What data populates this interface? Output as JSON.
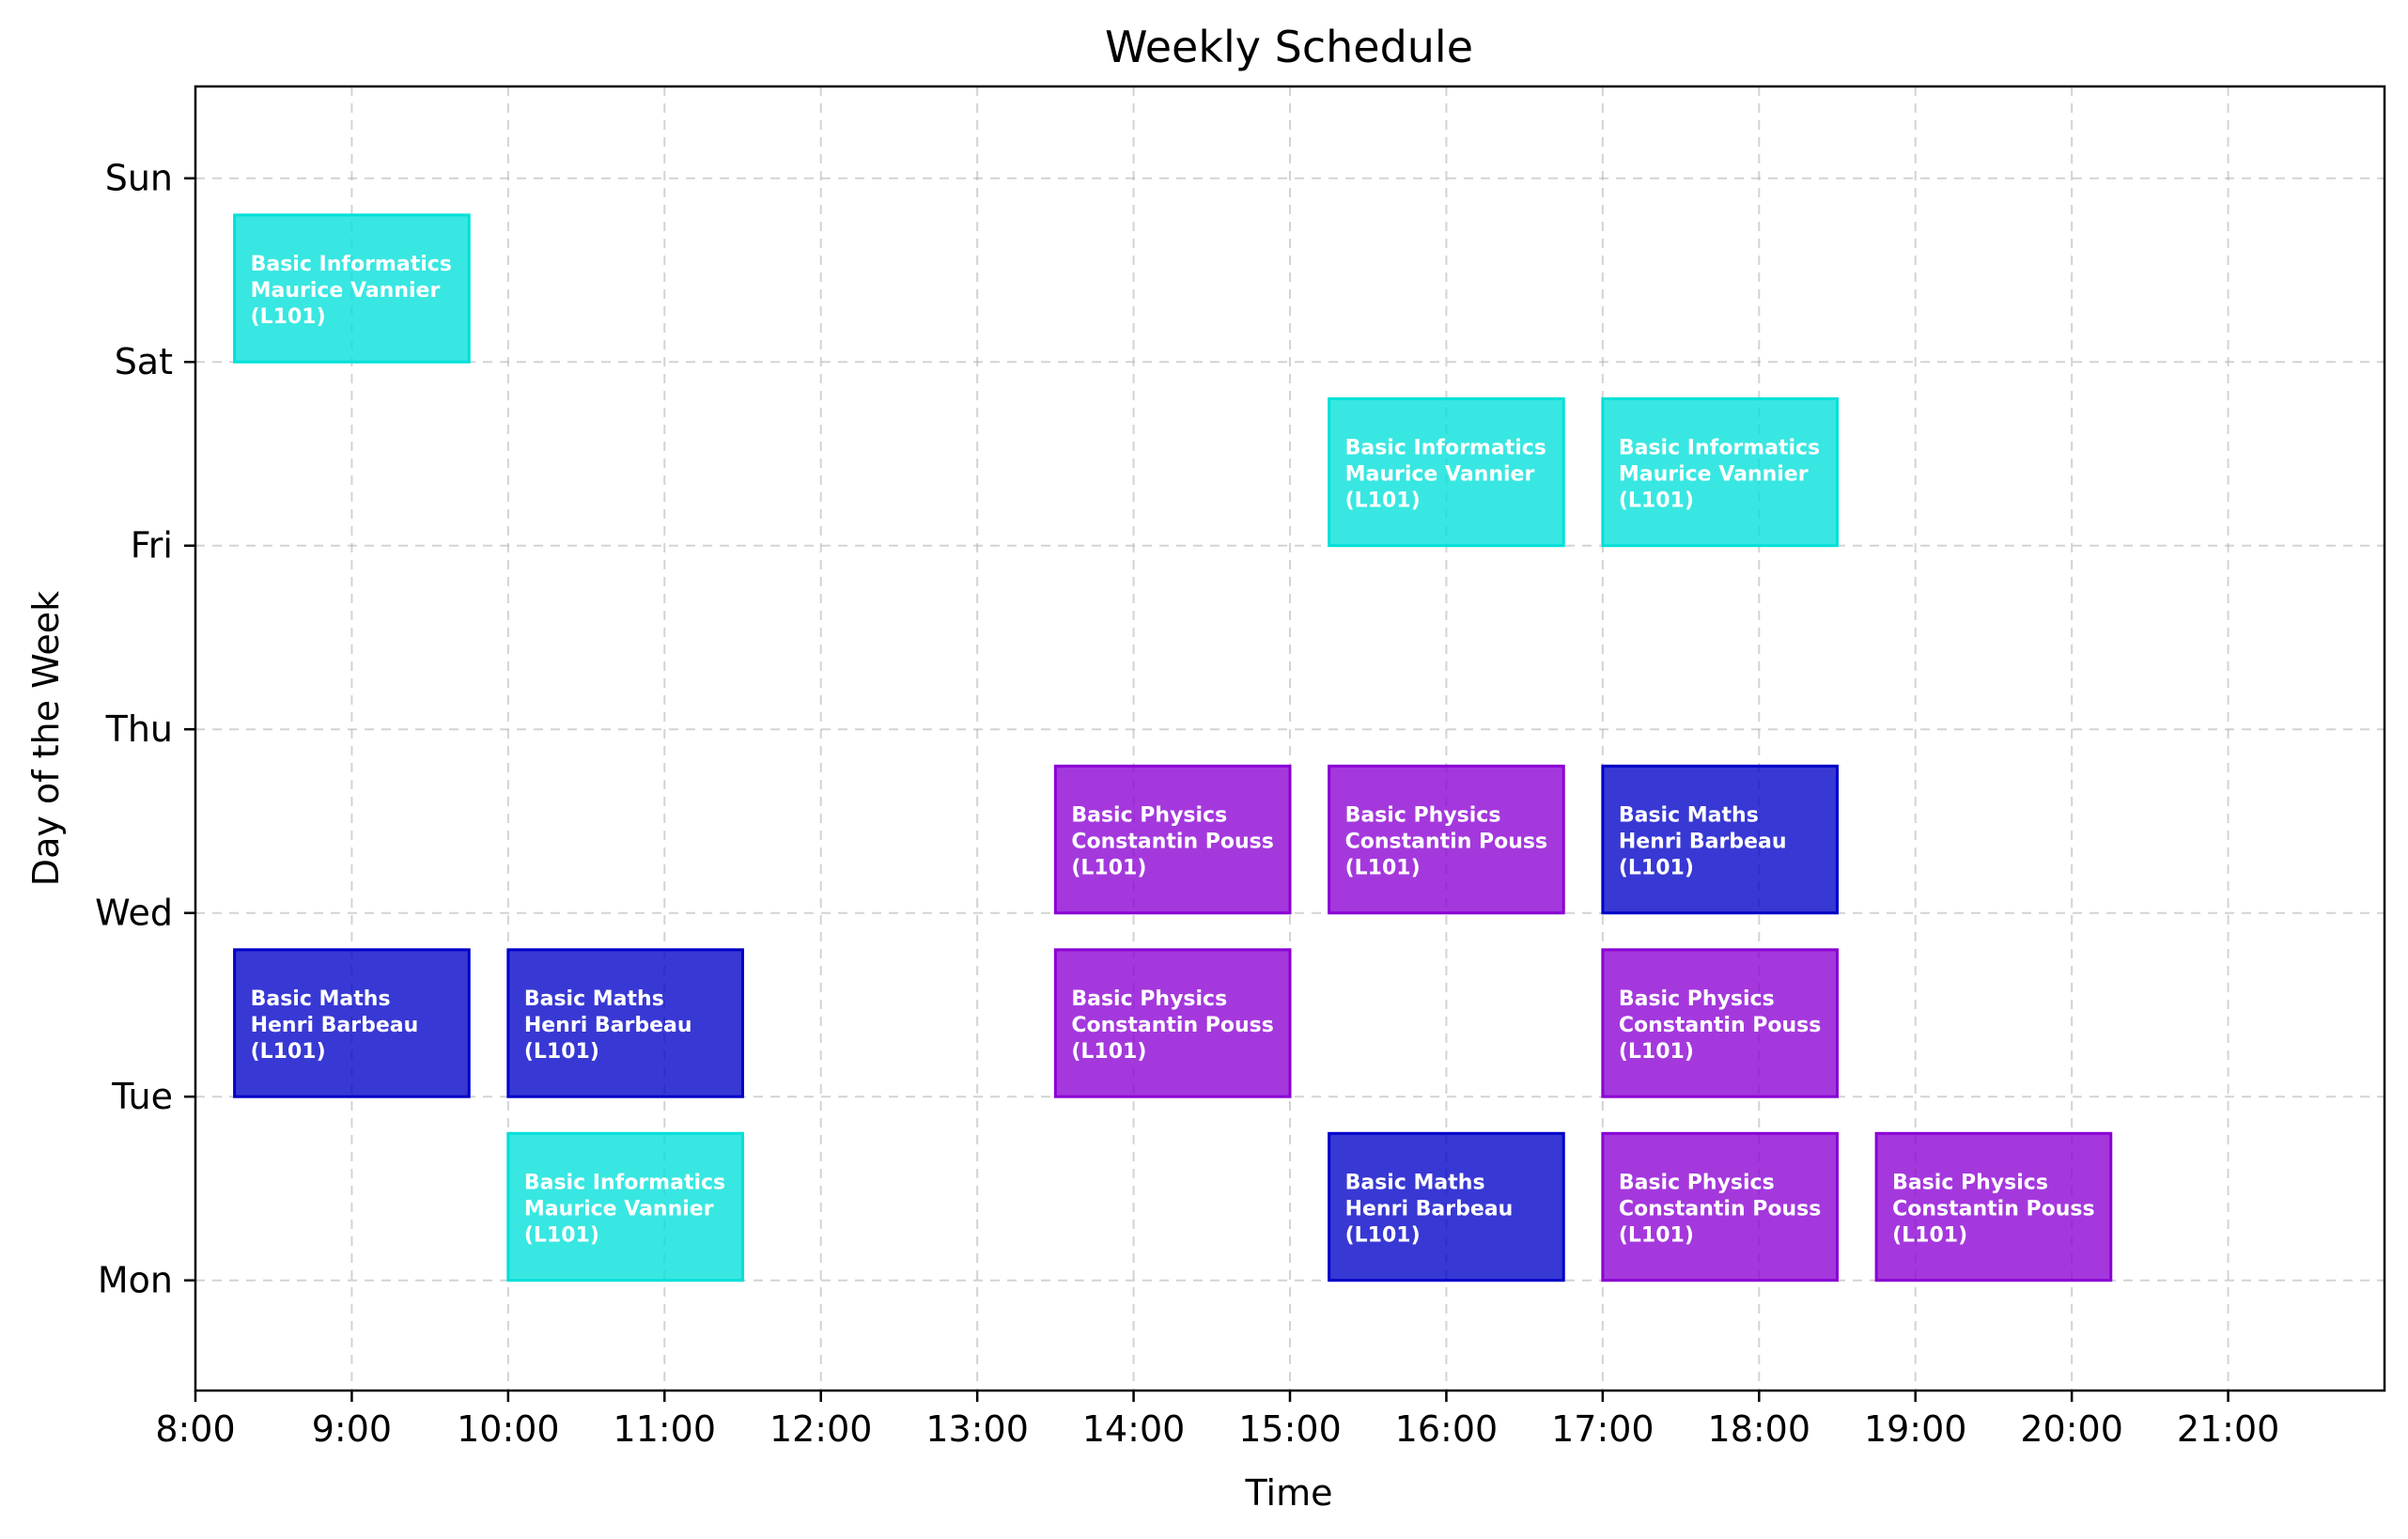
{
  "chart_data": {
    "type": "bar",
    "orientation": "horizontal-timeline",
    "title": "Weekly Schedule",
    "xlabel": "Time",
    "ylabel": "Day of the Week",
    "xlim": [
      8,
      22
    ],
    "ylim": [
      -0.6,
      6.5
    ],
    "x_ticks": [
      {
        "value": 8,
        "label": "8:00"
      },
      {
        "value": 9,
        "label": "9:00"
      },
      {
        "value": 10,
        "label": "10:00"
      },
      {
        "value": 11,
        "label": "11:00"
      },
      {
        "value": 12,
        "label": "12:00"
      },
      {
        "value": 13,
        "label": "13:00"
      },
      {
        "value": 14,
        "label": "14:00"
      },
      {
        "value": 15,
        "label": "15:00"
      },
      {
        "value": 16,
        "label": "16:00"
      },
      {
        "value": 17,
        "label": "17:00"
      },
      {
        "value": 18,
        "label": "18:00"
      },
      {
        "value": 19,
        "label": "19:00"
      },
      {
        "value": 20,
        "label": "20:00"
      },
      {
        "value": 21,
        "label": "21:00"
      }
    ],
    "y_ticks": [
      {
        "value": 0,
        "label": "Mon"
      },
      {
        "value": 1,
        "label": "Tue"
      },
      {
        "value": 2,
        "label": "Wed"
      },
      {
        "value": 3,
        "label": "Thu"
      },
      {
        "value": 4,
        "label": "Fri"
      },
      {
        "value": 5,
        "label": "Sat"
      },
      {
        "value": 6,
        "label": "Sun"
      }
    ],
    "grid": true,
    "legend": "none",
    "colors": {
      "Basic Informatics": "#00e0d8",
      "Basic Maths": "#0000c8",
      "Basic Physics": "#8a00d4"
    },
    "sessions": [
      {
        "day": 0,
        "start": 10.0,
        "end": 11.5,
        "course": "Basic Informatics",
        "teacher": "Maurice Vannier",
        "room": "(L101)"
      },
      {
        "day": 0,
        "start": 15.25,
        "end": 16.75,
        "course": "Basic Maths",
        "teacher": "Henri Barbeau",
        "room": "(L101)"
      },
      {
        "day": 0,
        "start": 17.0,
        "end": 18.5,
        "course": "Basic Physics",
        "teacher": "Constantin Pouss",
        "room": "(L101)"
      },
      {
        "day": 0,
        "start": 18.75,
        "end": 20.25,
        "course": "Basic Physics",
        "teacher": "Constantin Pouss",
        "room": "(L101)"
      },
      {
        "day": 1,
        "start": 8.25,
        "end": 9.75,
        "course": "Basic Maths",
        "teacher": "Henri Barbeau",
        "room": "(L101)"
      },
      {
        "day": 1,
        "start": 10.0,
        "end": 11.5,
        "course": "Basic Maths",
        "teacher": "Henri Barbeau",
        "room": "(L101)"
      },
      {
        "day": 1,
        "start": 13.5,
        "end": 15.0,
        "course": "Basic Physics",
        "teacher": "Constantin Pouss",
        "room": "(L101)"
      },
      {
        "day": 1,
        "start": 17.0,
        "end": 18.5,
        "course": "Basic Physics",
        "teacher": "Constantin Pouss",
        "room": "(L101)"
      },
      {
        "day": 2,
        "start": 13.5,
        "end": 15.0,
        "course": "Basic Physics",
        "teacher": "Constantin Pouss",
        "room": "(L101)"
      },
      {
        "day": 2,
        "start": 15.25,
        "end": 16.75,
        "course": "Basic Physics",
        "teacher": "Constantin Pouss",
        "room": "(L101)"
      },
      {
        "day": 2,
        "start": 17.0,
        "end": 18.5,
        "course": "Basic Maths",
        "teacher": "Henri Barbeau",
        "room": "(L101)"
      },
      {
        "day": 4,
        "start": 15.25,
        "end": 16.75,
        "course": "Basic Informatics",
        "teacher": "Maurice Vannier",
        "room": "(L101)"
      },
      {
        "day": 4,
        "start": 17.0,
        "end": 18.5,
        "course": "Basic Informatics",
        "teacher": "Maurice Vannier",
        "room": "(L101)"
      },
      {
        "day": 5,
        "start": 8.25,
        "end": 9.75,
        "course": "Basic Informatics",
        "teacher": "Maurice Vannier",
        "room": "(L101)"
      }
    ]
  }
}
